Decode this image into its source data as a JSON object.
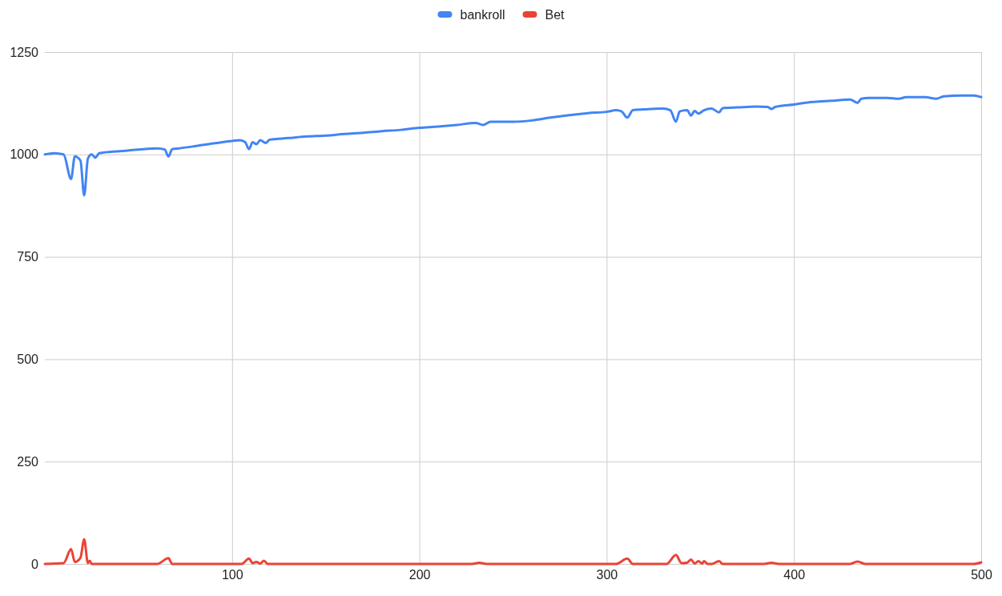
{
  "chart_data": {
    "type": "line",
    "xlim": [
      0,
      500
    ],
    "xticks": [
      100,
      200,
      300,
      400,
      500
    ],
    "ylim": [
      0,
      1250
    ],
    "yticks": [
      0,
      250,
      500,
      750,
      1000,
      1250
    ],
    "grid": true,
    "legend": "top",
    "marker": "none",
    "line_style": "solid",
    "series": [
      {
        "name": "bankroll",
        "color": "#4285f4",
        "x": [
          0,
          5,
          10,
          14,
          16,
          19,
          21,
          23,
          25,
          27,
          29,
          40,
          50,
          60,
          64,
          66,
          68,
          72,
          80,
          90,
          100,
          104,
          107,
          109,
          111,
          113,
          115,
          118,
          120,
          130,
          140,
          150,
          160,
          170,
          180,
          190,
          200,
          210,
          220,
          230,
          234,
          238,
          250,
          260,
          270,
          280,
          290,
          300,
          305,
          308,
          311,
          314,
          320,
          330,
          334,
          337,
          339,
          343,
          345,
          347,
          349,
          352,
          356,
          360,
          362,
          370,
          380,
          386,
          388,
          390,
          400,
          410,
          420,
          430,
          434,
          436,
          440,
          450,
          456,
          460,
          470,
          476,
          480,
          490,
          496,
          500
        ],
        "values": [
          1000,
          1003,
          1000,
          940,
          995,
          985,
          900,
          990,
          1000,
          992,
          1003,
          1008,
          1012,
          1015,
          1012,
          995,
          1013,
          1015,
          1020,
          1027,
          1033,
          1035,
          1030,
          1013,
          1030,
          1025,
          1035,
          1028,
          1036,
          1040,
          1044,
          1046,
          1050,
          1053,
          1057,
          1060,
          1065,
          1068,
          1072,
          1077,
          1072,
          1080,
          1080,
          1083,
          1090,
          1096,
          1101,
          1104,
          1108,
          1105,
          1090,
          1108,
          1110,
          1112,
          1108,
          1080,
          1105,
          1108,
          1095,
          1106,
          1100,
          1108,
          1112,
          1103,
          1113,
          1115,
          1117,
          1116,
          1111,
          1116,
          1122,
          1128,
          1131,
          1134,
          1126,
          1136,
          1138,
          1138,
          1136,
          1140,
          1140,
          1136,
          1142,
          1144,
          1144,
          1140
        ]
      },
      {
        "name": "Bet",
        "color": "#ea4335",
        "x": [
          0,
          10,
          14,
          16,
          19,
          21,
          23,
          24,
          25,
          60,
          66,
          68,
          105,
          109,
          111,
          113,
          115,
          117,
          119,
          228,
          232,
          236,
          305,
          311,
          314,
          332,
          337,
          340,
          343,
          345,
          347,
          349,
          351,
          352,
          354,
          356,
          360,
          362,
          384,
          388,
          392,
          430,
          434,
          438,
          496,
          500
        ],
        "values": [
          0,
          2,
          36,
          5,
          15,
          60,
          2,
          8,
          0,
          0,
          14,
          0,
          0,
          13,
          2,
          5,
          1,
          8,
          0,
          0,
          3,
          0,
          0,
          13,
          0,
          0,
          22,
          2,
          3,
          11,
          1,
          7,
          1,
          7,
          0,
          0,
          7,
          0,
          0,
          3,
          0,
          0,
          6,
          0,
          0,
          4
        ]
      }
    ]
  }
}
